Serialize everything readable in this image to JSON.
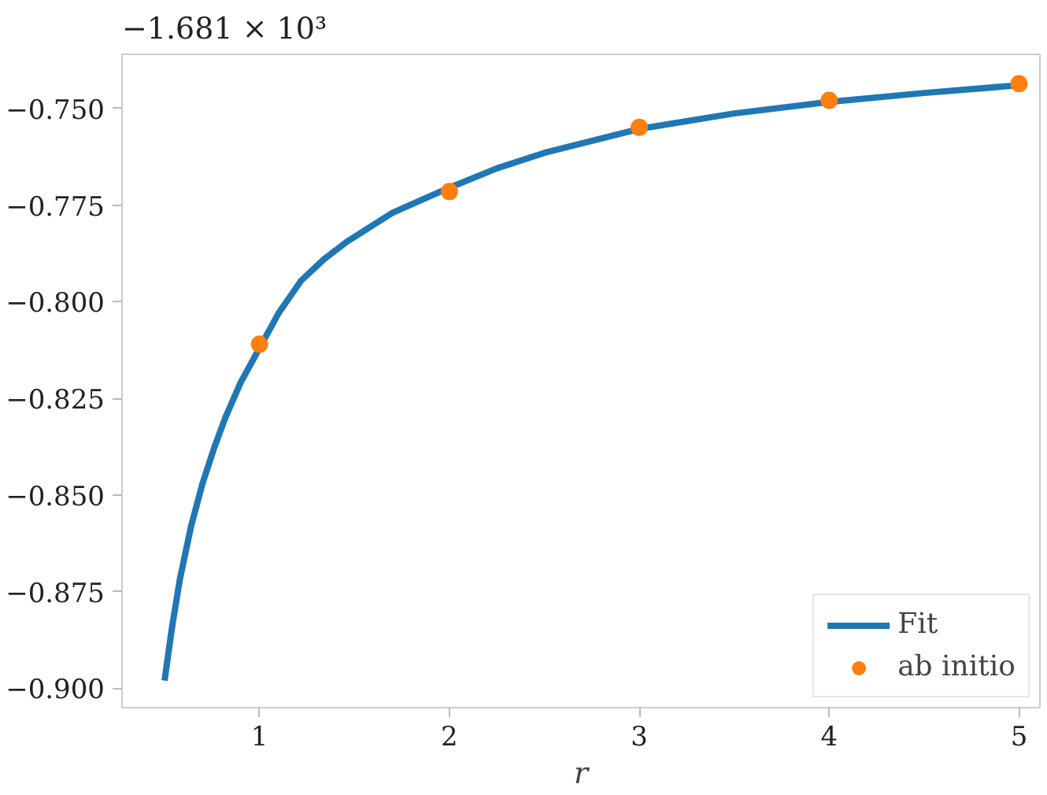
{
  "chart_data": {
    "type": "line",
    "xlabel": "r",
    "annotations": [
      "−1.681 × 10³"
    ],
    "xlim": [
      0.276,
      5.11
    ],
    "ylim": [
      -0.905,
      -0.736
    ],
    "xticks": [
      1,
      2,
      3,
      4,
      5
    ],
    "yticks": [
      {
        "value": -0.9,
        "label": "−0.900"
      },
      {
        "value": -0.875,
        "label": "−0.875"
      },
      {
        "value": -0.85,
        "label": "−0.850"
      },
      {
        "value": -0.825,
        "label": "−0.825"
      },
      {
        "value": -0.8,
        "label": "−0.800"
      },
      {
        "value": -0.775,
        "label": "−0.775"
      },
      {
        "value": -0.75,
        "label": "−0.750"
      }
    ],
    "grid": false,
    "legend": "bottom right",
    "series": [
      {
        "name": "Fit",
        "color": "#1f77b4",
        "x": [
          0.5,
          0.54,
          0.58,
          0.64,
          0.7,
          0.76,
          0.82,
          0.9,
          1,
          1.1,
          1.22,
          1.34,
          1.46,
          1.7,
          2,
          2.25,
          2.5,
          3,
          3.5,
          4,
          4.5,
          5
        ],
        "values": [
          -0.898,
          -0.884,
          -0.872,
          -0.858,
          -0.847,
          -0.838,
          -0.83,
          -0.821,
          -0.812,
          -0.803,
          -0.7945,
          -0.789,
          -0.7845,
          -0.777,
          -0.7705,
          -0.7655,
          -0.7615,
          -0.7553,
          -0.7513,
          -0.7483,
          -0.746,
          -0.744
        ]
      },
      {
        "name": "ab initio",
        "type": "scatter",
        "marker": "circle",
        "color": "#ff7f0e",
        "x": [
          1,
          2,
          3,
          4,
          5
        ],
        "values": [
          -0.811,
          -0.7715,
          -0.7549,
          -0.7479,
          -0.7436
        ]
      }
    ]
  }
}
